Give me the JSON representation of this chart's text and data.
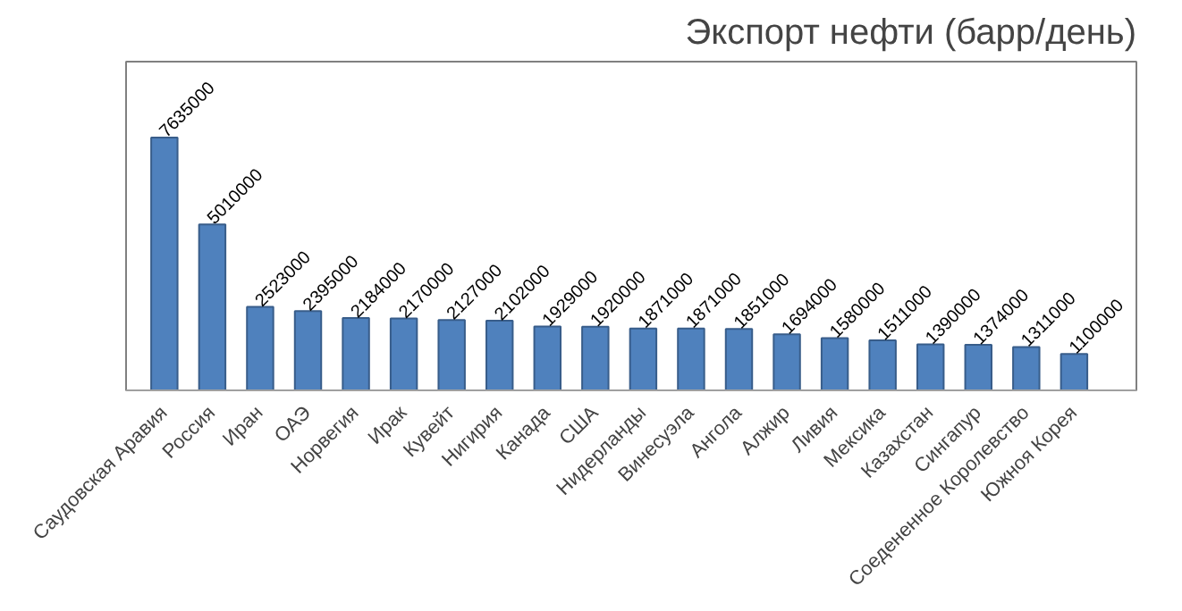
{
  "chart_data": {
    "type": "bar",
    "title": "Экспорт нефти (барр/день)",
    "categories": [
      "Саудовская Аравия",
      "Россия",
      "Иран",
      "ОАЭ",
      "Норвегия",
      "Ирак",
      "Кувейт",
      "Нигирия",
      "Канада",
      "США",
      "Нидерланды",
      "Винесуэла",
      "Ангола",
      "Алжир",
      "Ливия",
      "Мексика",
      "Казахстан",
      "Сингапур",
      "Соедененное Королевство",
      "Южноя Корея"
    ],
    "values": [
      7635000,
      5010000,
      2523000,
      2395000,
      2184000,
      2170000,
      2127000,
      2102000,
      1929000,
      1920000,
      1871000,
      1871000,
      1851000,
      1694000,
      1580000,
      1511000,
      1390000,
      1374000,
      1311000,
      1100000
    ],
    "color": "#4f81bd",
    "data_labels": true,
    "grid": false
  }
}
